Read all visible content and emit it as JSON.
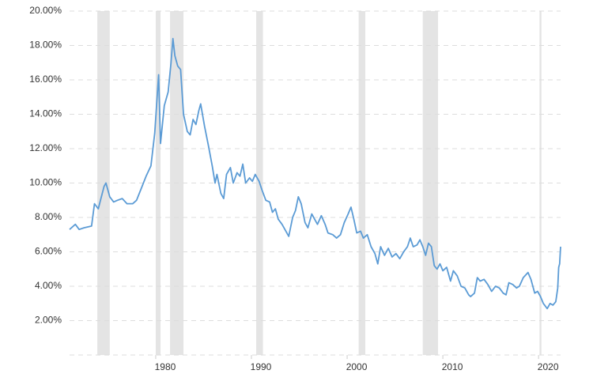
{
  "chart_data": {
    "type": "line",
    "color": "#5b9bd5",
    "grid": true,
    "xlim": [
      1971,
      2022.3
    ],
    "xticks": [
      1980,
      1990,
      2000,
      2010,
      2020
    ],
    "ylim": [
      0,
      20
    ],
    "yticks": [
      {
        "value": 2,
        "label": "2.00%"
      },
      {
        "value": 4,
        "label": "4.00%"
      },
      {
        "value": 6,
        "label": "6.00%"
      },
      {
        "value": 8,
        "label": "8.00%"
      },
      {
        "value": 10,
        "label": "10.00%"
      },
      {
        "value": 12,
        "label": "12.00%"
      },
      {
        "value": 14,
        "label": "14.00%"
      },
      {
        "value": 16,
        "label": "16.00%"
      },
      {
        "value": 18,
        "label": "18.00%"
      },
      {
        "value": 20,
        "label": "20.00%"
      }
    ],
    "shaded_ranges": [
      [
        1973.9,
        1975.2
      ],
      [
        1980.0,
        1980.5
      ],
      [
        1981.5,
        1982.9
      ],
      [
        1990.5,
        1991.2
      ],
      [
        2001.2,
        2001.9
      ],
      [
        2007.9,
        2009.5
      ],
      [
        2020.1,
        2020.3
      ]
    ],
    "shade_color": "#e4e4e4",
    "x": [
      1971.0,
      1971.6,
      1972,
      1972.5,
      1973.3,
      1973.6,
      1974,
      1974.6,
      1974.8,
      1975.2,
      1975.6,
      1976,
      1976.5,
      1977,
      1977.6,
      1978,
      1978.5,
      1979,
      1979.5,
      1979.9,
      1980.3,
      1980.5,
      1980.9,
      1981.3,
      1981.6,
      1981.8,
      1982,
      1982.3,
      1982.6,
      1982.9,
      1983.3,
      1983.6,
      1983.9,
      1984.2,
      1984.5,
      1984.7,
      1985.1,
      1985.5,
      1985.9,
      1986.2,
      1986.4,
      1986.8,
      1987.1,
      1987.4,
      1987.8,
      1988.1,
      1988.5,
      1988.8,
      1989.1,
      1989.4,
      1989.8,
      1990.1,
      1990.4,
      1990.8,
      1991.1,
      1991.5,
      1991.9,
      1992.2,
      1992.5,
      1992.8,
      1993.2,
      1993.6,
      1993.9,
      1994.3,
      1994.6,
      1994.9,
      1995.2,
      1995.6,
      1995.9,
      1996.3,
      1996.6,
      1996.9,
      1997.3,
      1997.7,
      1998,
      1998.5,
      1998.9,
      1999.3,
      1999.7,
      2000.1,
      2000.4,
      2000.7,
      2001,
      2001.4,
      2001.7,
      2002.1,
      2002.5,
      2002.9,
      2003.2,
      2003.5,
      2003.9,
      2004.3,
      2004.7,
      2005.1,
      2005.5,
      2005.9,
      2006.3,
      2006.6,
      2006.9,
      2007.3,
      2007.6,
      2007.9,
      2008.2,
      2008.5,
      2008.8,
      2009.1,
      2009.4,
      2009.7,
      2010,
      2010.4,
      2010.8,
      2011.1,
      2011.5,
      2011.9,
      2012.3,
      2012.7,
      2012.9,
      2013.3,
      2013.6,
      2013.9,
      2014.3,
      2014.7,
      2015.1,
      2015.5,
      2015.9,
      2016.3,
      2016.6,
      2016.9,
      2017.3,
      2017.7,
      2018,
      2018.4,
      2018.9,
      2019.2,
      2019.6,
      2019.9,
      2020.2,
      2020.5,
      2020.9,
      2021.2,
      2021.5,
      2021.8,
      2022,
      2022.1,
      2022.2,
      2022.3
    ],
    "values": [
      7.3,
      7.6,
      7.3,
      7.4,
      7.5,
      8.8,
      8.5,
      9.8,
      10.0,
      9.2,
      8.9,
      9.0,
      9.1,
      8.8,
      8.8,
      9.0,
      9.7,
      10.4,
      11.0,
      12.9,
      16.3,
      12.3,
      14.5,
      15.3,
      17.0,
      18.4,
      17.4,
      16.8,
      16.6,
      14.0,
      13.0,
      12.8,
      13.7,
      13.4,
      14.2,
      14.6,
      13.3,
      12.2,
      11.0,
      10.0,
      10.5,
      9.4,
      9.1,
      10.5,
      10.9,
      10.0,
      10.6,
      10.4,
      11.1,
      10.0,
      10.3,
      10.1,
      10.5,
      10.1,
      9.6,
      9.0,
      8.9,
      8.3,
      8.5,
      7.9,
      7.6,
      7.2,
      6.9,
      8.0,
      8.4,
      9.2,
      8.8,
      7.7,
      7.4,
      8.2,
      7.9,
      7.6,
      8.1,
      7.6,
      7.1,
      7.0,
      6.8,
      7.0,
      7.7,
      8.2,
      8.6,
      7.9,
      7.1,
      7.2,
      6.8,
      7.0,
      6.3,
      5.9,
      5.3,
      6.3,
      5.8,
      6.2,
      5.7,
      5.9,
      5.6,
      6.0,
      6.3,
      6.8,
      6.3,
      6.4,
      6.7,
      6.3,
      5.8,
      6.5,
      6.3,
      5.2,
      5.0,
      5.3,
      4.9,
      5.1,
      4.3,
      4.9,
      4.6,
      4.0,
      3.9,
      3.5,
      3.4,
      3.6,
      4.5,
      4.3,
      4.4,
      4.1,
      3.7,
      4.0,
      3.9,
      3.6,
      3.5,
      4.2,
      4.1,
      3.9,
      4.0,
      4.5,
      4.8,
      4.4,
      3.6,
      3.7,
      3.4,
      3.0,
      2.7,
      3.0,
      2.9,
      3.1,
      3.9,
      5.1,
      5.3,
      6.3
    ]
  }
}
